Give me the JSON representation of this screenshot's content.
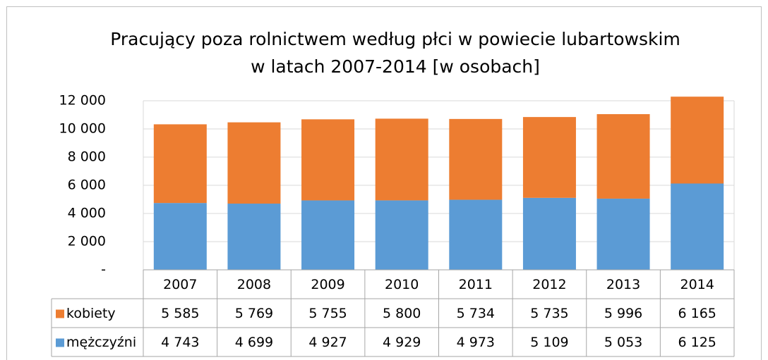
{
  "chart_data": {
    "type": "bar",
    "stacked": true,
    "title": [
      "Pracujący  poza rolnictwem według płci w powiecie lubartowskim",
      "w latach 2007-2014 [w osobach]"
    ],
    "categories": [
      "2007",
      "2008",
      "2009",
      "2010",
      "2011",
      "2012",
      "2013",
      "2014"
    ],
    "series": [
      {
        "name": "kobiety",
        "color": "#ed7d31",
        "values": [
          5585,
          5769,
          5755,
          5800,
          5734,
          5735,
          5996,
          6165
        ],
        "value_labels": [
          "5 585",
          "5 769",
          "5 755",
          "5 800",
          "5 734",
          "5 735",
          "5 996",
          "6 165"
        ]
      },
      {
        "name": "mężczyźni",
        "color": "#5b9bd5",
        "values": [
          4743,
          4699,
          4927,
          4929,
          4973,
          5109,
          5053,
          6125
        ],
        "value_labels": [
          "4 743",
          "4 699",
          "4 927",
          "4 929",
          "4 973",
          "5 109",
          "5 053",
          "6 125"
        ]
      }
    ],
    "ylim": [
      0,
      12000
    ],
    "yticks": [
      {
        "value": 0,
        "label": "-"
      },
      {
        "value": 2000,
        "label": "2 000"
      },
      {
        "value": 4000,
        "label": "4 000"
      },
      {
        "value": 6000,
        "label": "6 000"
      },
      {
        "value": 8000,
        "label": "8 000"
      },
      {
        "value": 10000,
        "label": "10 000"
      },
      {
        "value": 12000,
        "label": "12 000"
      }
    ],
    "grid": true
  }
}
